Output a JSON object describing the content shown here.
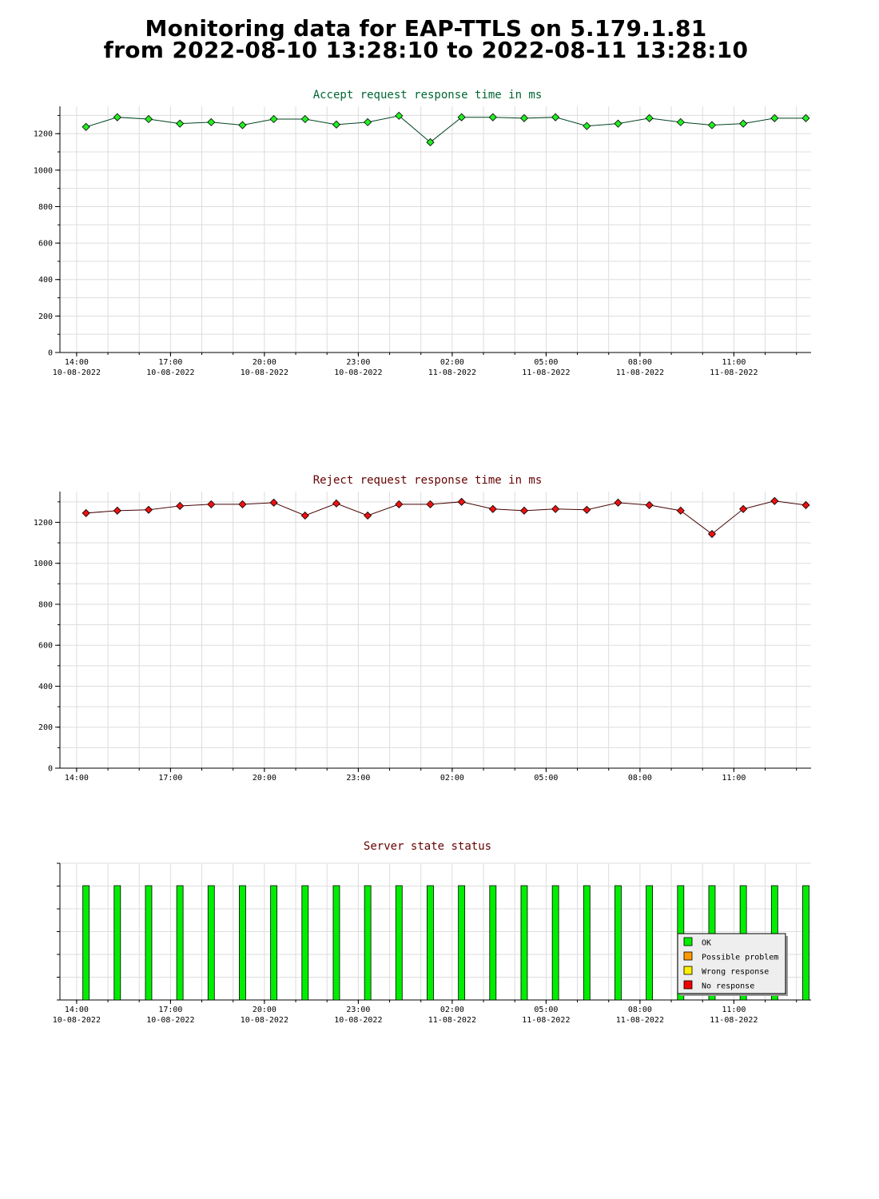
{
  "header": {
    "title_line1": "Monitoring data for EAP-TTLS on 5.179.1.81",
    "title_line2": "from 2022-08-10 13:28:10 to 2022-08-11 13:28:10"
  },
  "x_axis": {
    "ticks": [
      {
        "time": "14:00",
        "date": "10-08-2022"
      },
      {
        "time": "17:00",
        "date": "10-08-2022"
      },
      {
        "time": "20:00",
        "date": "10-08-2022"
      },
      {
        "time": "23:00",
        "date": "10-08-2022"
      },
      {
        "time": "02:00",
        "date": "11-08-2022"
      },
      {
        "time": "05:00",
        "date": "11-08-2022"
      },
      {
        "time": "08:00",
        "date": "11-08-2022"
      },
      {
        "time": "11:00",
        "date": "11-08-2022"
      }
    ]
  },
  "colors": {
    "accept_title": "#006633",
    "reject_title": "#660000",
    "accept_marker": "#22ee22",
    "reject_marker": "#ee1111",
    "ok": "#00ee00",
    "possible_problem": "#ff9900",
    "wrong_response": "#ffee00",
    "no_response": "#ee0000"
  },
  "chart_data": [
    {
      "type": "line",
      "title": "Accept request response time in ms",
      "x": [
        "2022-08-10 14:18",
        "2022-08-10 15:18",
        "2022-08-10 16:18",
        "2022-08-10 17:18",
        "2022-08-10 18:18",
        "2022-08-10 19:18",
        "2022-08-10 20:18",
        "2022-08-10 21:18",
        "2022-08-10 22:18",
        "2022-08-10 23:18",
        "2022-08-11 00:18",
        "2022-08-11 01:18",
        "2022-08-11 02:18",
        "2022-08-11 03:18",
        "2022-08-11 04:18",
        "2022-08-11 05:18",
        "2022-08-11 06:18",
        "2022-08-11 07:18",
        "2022-08-11 08:18",
        "2022-08-11 09:18",
        "2022-08-11 10:18",
        "2022-08-11 11:18",
        "2022-08-11 12:18",
        "2022-08-11 13:18"
      ],
      "series": [
        {
          "values": [
            1237,
            1290,
            1280,
            1255,
            1263,
            1247,
            1280,
            1280,
            1250,
            1263,
            1298,
            1153,
            1290,
            1290,
            1285,
            1290,
            1242,
            1255,
            1285,
            1263,
            1247,
            1255,
            1285,
            1285
          ]
        }
      ],
      "yticks": [
        0,
        200,
        400,
        600,
        800,
        1000,
        1200
      ],
      "ylim": [
        0,
        1350
      ],
      "xlim": [
        "2022-08-10 13:28",
        "2022-08-11 13:28"
      ],
      "grid": true
    },
    {
      "type": "line",
      "title": "Reject request response time in ms",
      "x": [
        "2022-08-10 14:18",
        "2022-08-10 15:18",
        "2022-08-10 16:18",
        "2022-08-10 17:18",
        "2022-08-10 18:18",
        "2022-08-10 19:18",
        "2022-08-10 20:18",
        "2022-08-10 21:18",
        "2022-08-10 22:18",
        "2022-08-10 23:18",
        "2022-08-11 00:18",
        "2022-08-11 01:18",
        "2022-08-11 02:18",
        "2022-08-11 03:18",
        "2022-08-11 04:18",
        "2022-08-11 05:18",
        "2022-08-11 06:18",
        "2022-08-11 07:18",
        "2022-08-11 08:18",
        "2022-08-11 09:18",
        "2022-08-11 10:18",
        "2022-08-11 11:18",
        "2022-08-11 12:18",
        "2022-08-11 13:18"
      ],
      "series": [
        {
          "values": [
            1245,
            1257,
            1261,
            1280,
            1288,
            1288,
            1296,
            1233,
            1292,
            1233,
            1288,
            1288,
            1300,
            1265,
            1257,
            1265,
            1261,
            1296,
            1284,
            1257,
            1143,
            1265,
            1304,
            1284
          ]
        }
      ],
      "yticks": [
        0,
        200,
        400,
        600,
        800,
        1000,
        1200
      ],
      "ylim": [
        0,
        1350
      ],
      "xlim": [
        "2022-08-10 13:28",
        "2022-08-11 13:28"
      ],
      "grid": true
    },
    {
      "type": "bar",
      "title": "Server state status",
      "x": [
        "2022-08-10 14:18",
        "2022-08-10 15:18",
        "2022-08-10 16:18",
        "2022-08-10 17:18",
        "2022-08-10 18:18",
        "2022-08-10 19:18",
        "2022-08-10 20:18",
        "2022-08-10 21:18",
        "2022-08-10 22:18",
        "2022-08-10 23:18",
        "2022-08-11 00:18",
        "2022-08-11 01:18",
        "2022-08-11 02:18",
        "2022-08-11 03:18",
        "2022-08-11 04:18",
        "2022-08-11 05:18",
        "2022-08-11 06:18",
        "2022-08-11 07:18",
        "2022-08-11 08:18",
        "2022-08-11 09:18",
        "2022-08-11 10:18",
        "2022-08-11 11:18",
        "2022-08-11 12:18",
        "2022-08-11 13:18"
      ],
      "states": [
        "OK",
        "OK",
        "OK",
        "OK",
        "OK",
        "OK",
        "OK",
        "OK",
        "OK",
        "OK",
        "OK",
        "OK",
        "OK",
        "OK",
        "OK",
        "OK",
        "OK",
        "OK",
        "OK",
        "OK",
        "OK",
        "OK",
        "OK",
        "OK"
      ],
      "legend": [
        "OK",
        "Possible problem",
        "Wrong response",
        "No response"
      ],
      "legend_position": "bottom-right",
      "grid": true
    }
  ]
}
